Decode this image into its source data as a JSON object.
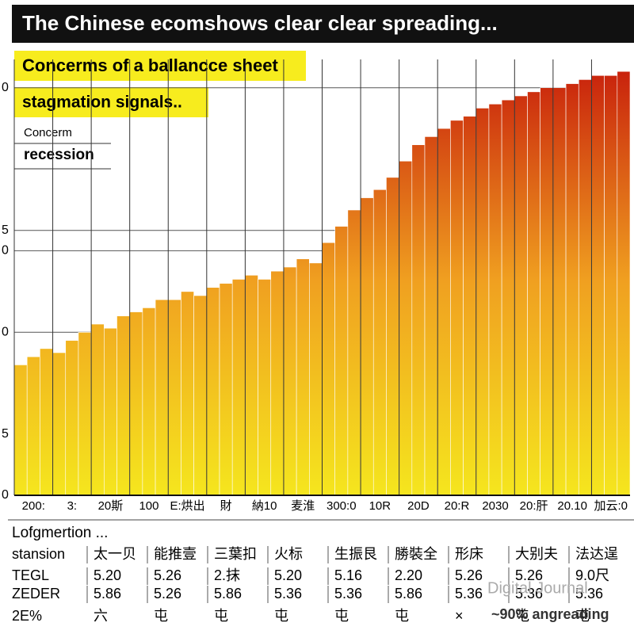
{
  "title": "The Chinese ecomshows clear clear spreading...",
  "chart_data": {
    "type": "bar",
    "subtitle": [
      "Concerms of a ballancce sheet",
      "stagmation signals.."
    ],
    "annotation": [
      "Concerm",
      "recession"
    ],
    "categories": [
      "200:",
      "3:",
      "20斯",
      "100",
      "E:烘出",
      "財",
      "納10",
      "麦淮",
      "300:0",
      "10R",
      "20D",
      "20:R",
      "2030",
      "20:肝",
      "20.10",
      "加云:0"
    ],
    "series": [
      {
        "values": [
          32,
          35,
          42,
          45,
          48,
          51,
          54,
          56,
          62,
          73,
          82,
          90,
          95,
          98,
          100,
          103
        ]
      },
      {
        "values": [
          34,
          38,
          41,
          46,
          50,
          52,
          53,
          58,
          66,
          75,
          86,
          92,
          96,
          99,
          101,
          103
        ]
      },
      {
        "values": [
          36,
          40,
          44,
          48,
          49,
          53,
          55,
          57,
          70,
          78,
          88,
          93,
          97,
          100,
          102,
          104
        ]
      }
    ],
    "colors": [
      "#f5e61e",
      "#f0a020",
      "#c8200c"
    ],
    "ylim": [
      0,
      105
    ],
    "yticks": [
      0,
      {
        "value": 15,
        "label": "5"
      },
      {
        "value": 40,
        "label": "0"
      },
      {
        "value": 60,
        "label": "0"
      },
      {
        "value": 65,
        "label": "5"
      },
      {
        "value": 100,
        "label": "0"
      }
    ],
    "grid": true
  },
  "table": {
    "title": "Lofgmertion ...",
    "rows": [
      [
        "stansion",
        "太一贝",
        "能推壹",
        "三葉扣",
        "火标",
        "生振艮",
        "勝裝全",
        "形床",
        "大别夫",
        "法达逞"
      ],
      [
        "TEGL",
        "5.20",
        "5.26",
        "2.抹",
        "5.20",
        "5.16",
        "2.20",
        "5.26",
        "5.26",
        "9.0尺"
      ],
      [
        "ZEDER",
        "5.86",
        "5.26",
        "5.86",
        "5.36",
        "5.36",
        "5.86",
        "5.36",
        "5.36",
        "5.36"
      ],
      [
        "2E%",
        "六",
        "屯",
        "屯",
        "屯",
        "屯",
        "屯",
        "×",
        "屯",
        "屯"
      ]
    ],
    "note": "~90% angreading"
  },
  "watermark": "Digital Journal"
}
